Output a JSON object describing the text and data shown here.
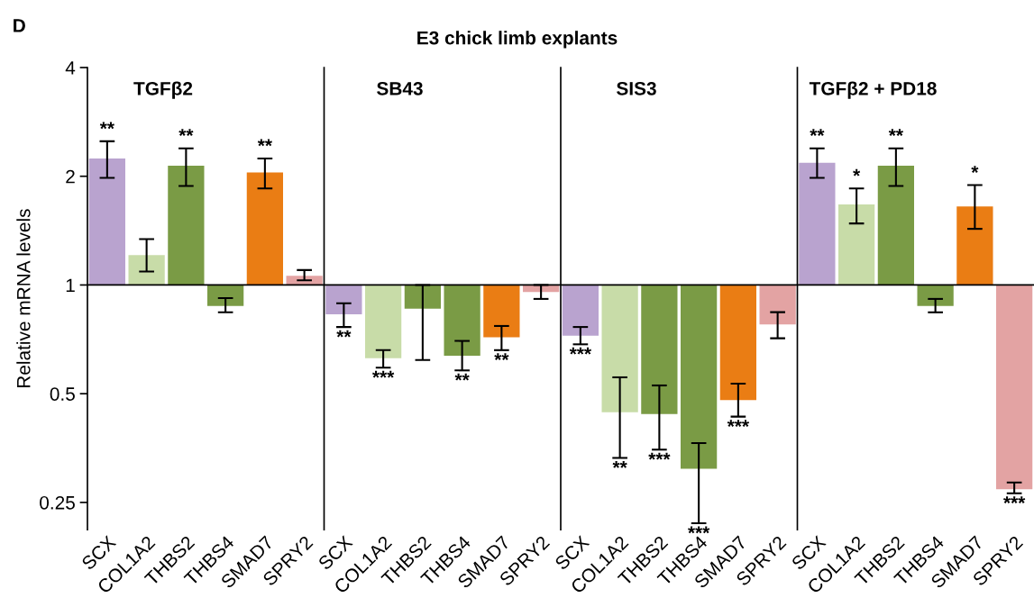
{
  "chart_data": [
    {
      "type": "bar",
      "title": "TGFβ2",
      "ylabel": "Relative mRNA levels",
      "log": "y",
      "ylim": [
        0.21,
        4
      ],
      "yticks": [
        0.25,
        0.5,
        1,
        2,
        4
      ],
      "categories": [
        "SCX",
        "COL1A2",
        "THBS2",
        "THBS4",
        "SMAD7",
        "SPRY2"
      ],
      "base": [
        1,
        1,
        1,
        1,
        1,
        1
      ],
      "values": [
        1.24,
        0.21,
        1.14,
        -0.125,
        1.05,
        0.06
      ],
      "errors": [
        [
          1.98,
          2.5
        ],
        [
          1.09,
          1.34
        ],
        [
          1.88,
          2.39
        ],
        [
          0.84,
          0.92
        ],
        [
          1.85,
          2.24
        ],
        [
          1.03,
          1.1
        ]
      ],
      "colors": [
        "#b9a3cf",
        "#c8dca8",
        "#7a9b45",
        "#7a9b45",
        "#ea7d14",
        "#e3a3a3"
      ],
      "ref_lines": [
        {
          "axis": "y",
          "value": 1
        }
      ],
      "annotations": [
        "D",
        "E3 chick limb explants",
        {
          "text": "**",
          "x": "SCX",
          "y": 2.5
        },
        {
          "text": "**",
          "x": "THBS2",
          "y": 2.39
        },
        {
          "text": "**",
          "x": "SMAD7",
          "y": 2.24
        }
      ]
    },
    {
      "type": "bar",
      "title": "SB43",
      "log": "y",
      "ylim": [
        0.21,
        4
      ],
      "yticks": [
        0.25,
        0.5,
        1,
        2,
        4
      ],
      "tick_labels": "x",
      "categories": [
        "SCX",
        "COL1A2",
        "THBS2",
        "THBS4",
        "SMAD7",
        "SPRY2"
      ],
      "base": [
        1,
        1,
        1,
        1,
        1,
        1
      ],
      "values": [
        -0.17,
        -0.373,
        -0.14,
        -0.363,
        -0.284,
        -0.044
      ],
      "errors": [
        [
          0.765,
          0.89
        ],
        [
          0.59,
          0.66
        ],
        [
          0.62,
          1.0
        ],
        [
          0.58,
          0.7
        ],
        [
          0.66,
          0.77
        ],
        [
          0.915,
          1.0
        ]
      ],
      "colors": [
        "#b9a3cf",
        "#c8dca8",
        "#7a9b45",
        "#7a9b45",
        "#ea7d14",
        "#e3a3a3"
      ],
      "ref_lines": [
        {
          "axis": "y",
          "value": 1
        }
      ],
      "annotations": [
        {
          "text": "**",
          "x": "SCX",
          "y": 0.765
        },
        {
          "text": "***",
          "x": "COL1A2",
          "y": 0.59
        },
        {
          "text": "**",
          "x": "THBS4",
          "y": 0.58
        },
        {
          "text": "**",
          "x": "SMAD7",
          "y": 0.66
        }
      ]
    },
    {
      "type": "bar",
      "title": "SIS3",
      "log": "y",
      "ylim": [
        0.21,
        4
      ],
      "yticks": [
        0.25,
        0.5,
        1,
        2,
        4
      ],
      "tick_labels": "x",
      "categories": [
        "SCX",
        "COL1A2",
        "THBS2",
        "THBS4",
        "SMAD7",
        "SPRY2"
      ],
      "base": [
        1,
        1,
        1,
        1,
        1,
        1
      ],
      "values": [
        -0.276,
        -0.556,
        -0.561,
        -0.69,
        -0.52,
        -0.222
      ],
      "errors": [
        [
          0.685,
          0.765
        ],
        [
          0.332,
          0.555
        ],
        [
          0.35,
          0.527
        ],
        [
          0.219,
          0.365
        ],
        [
          0.432,
          0.533
        ],
        [
          0.712,
          0.841
        ]
      ],
      "colors": [
        "#b9a3cf",
        "#c8dca8",
        "#7a9b45",
        "#7a9b45",
        "#ea7d14",
        "#e3a3a3"
      ],
      "ref_lines": [
        {
          "axis": "y",
          "value": 1
        }
      ],
      "annotations": [
        {
          "text": "***",
          "x": "SCX",
          "y": 0.685
        },
        {
          "text": "**",
          "x": "COL1A2",
          "y": 0.332
        },
        {
          "text": "***",
          "x": "THBS2",
          "y": 0.35
        },
        {
          "text": "***",
          "x": "THBS4",
          "y": 0.219
        },
        {
          "text": "***",
          "x": "SMAD7",
          "y": 0.432
        }
      ]
    },
    {
      "type": "bar",
      "title": "TGFβ2 + PD18",
      "log": "y",
      "ylim": [
        0.21,
        4
      ],
      "yticks": [
        0.25,
        0.5,
        1,
        2,
        4
      ],
      "tick_labels": "x",
      "categories": [
        "SCX",
        "COL1A2",
        "THBS2",
        "THBS4",
        "SMAD7",
        "SPRY2"
      ],
      "base": [
        1,
        1,
        1,
        1,
        1,
        1
      ],
      "values": [
        1.18,
        0.67,
        1.14,
        -0.125,
        0.65,
        -0.728
      ],
      "errors": [
        [
          1.98,
          2.39
        ],
        [
          1.48,
          1.85
        ],
        [
          1.88,
          2.39
        ],
        [
          0.84,
          0.915
        ],
        [
          1.43,
          1.89
        ],
        [
          0.265,
          0.284
        ]
      ],
      "colors": [
        "#b9a3cf",
        "#c8dca8",
        "#7a9b45",
        "#7a9b45",
        "#ea7d14",
        "#e3a3a3"
      ],
      "ref_lines": [
        {
          "axis": "y",
          "value": 1
        }
      ],
      "annotations": [
        {
          "text": "**",
          "x": "SCX",
          "y": 2.39
        },
        {
          "text": "*",
          "x": "COL1A2",
          "y": 1.85
        },
        {
          "text": "**",
          "x": "THBS2",
          "y": 2.39
        },
        {
          "text": "*",
          "x": "SMAD7",
          "y": 1.89
        },
        {
          "text": "***",
          "x": "SPRY2",
          "y": 0.265
        }
      ]
    }
  ]
}
